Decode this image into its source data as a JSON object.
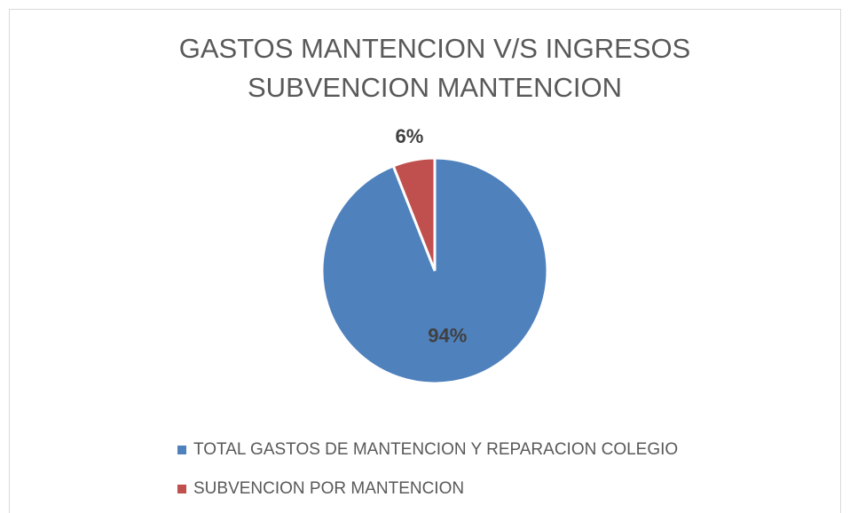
{
  "chart_data": {
    "type": "pie",
    "title": [
      "GASTOS MANTENCION V/S INGRESOS",
      "SUBVENCION MANTENCION"
    ],
    "categories": [
      "TOTAL GASTOS DE MANTENCION Y REPARACION COLEGIO",
      "SUBVENCION POR MANTENCION"
    ],
    "values": [
      94,
      6
    ],
    "value_labels": [
      "94%",
      "6%"
    ],
    "colors": [
      "#4f81bd",
      "#c0504d"
    ],
    "legend": "bottom"
  }
}
